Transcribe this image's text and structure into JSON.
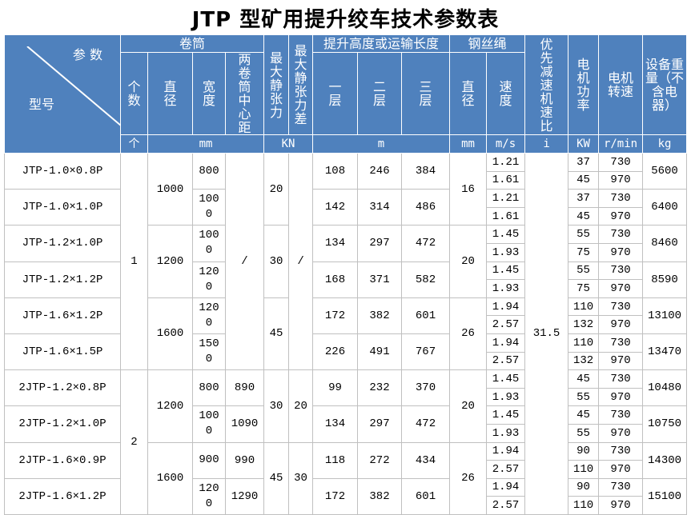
{
  "title": "JTP 型矿用提升绞车技术参数表",
  "header": {
    "param": "参 数",
    "model": "型号",
    "drum": "卷筒",
    "count": "个数",
    "diameter": "直径",
    "width": "宽度",
    "center": "两卷筒中心距",
    "max_tension": "最大静张力",
    "max_tension_diff": "最大静张力差",
    "lift": "提升高度或运输长度",
    "layer1": "一层",
    "layer2": "二层",
    "layer3": "三层",
    "rope": "钢丝绳",
    "rope_dia": "直径",
    "rope_speed": "速度",
    "ratio": "优先减速机速比",
    "motor_power": "电机功率",
    "motor_rpm": "电机转速",
    "weight": "设备重量（不含电器）"
  },
  "units": {
    "count": "个",
    "drum": "mm",
    "tension": "KN",
    "lift": "m",
    "rope_dia": "mm",
    "speed": "m/s",
    "ratio": "i",
    "power": "KW",
    "rpm": "r/min",
    "weight": "kg"
  },
  "colors": {
    "header_bg": "#4f81bd",
    "header_text": "#ffffff",
    "grid": "#c0c0c0"
  },
  "groups": {
    "count": [
      {
        "value": "1",
        "models": 6
      },
      {
        "value": "2",
        "models": 4
      }
    ],
    "diameter": [
      {
        "value": "1000",
        "models": 2
      },
      {
        "value": "1200",
        "models": 2
      },
      {
        "value": "1600",
        "models": 2
      },
      {
        "value": "1200",
        "models": 2
      },
      {
        "value": "1600",
        "models": 2
      }
    ],
    "center": [
      {
        "value": "/",
        "models": 6
      },
      {
        "value": "890",
        "models": 1
      },
      {
        "value": "1090",
        "models": 1
      },
      {
        "value": "990",
        "models": 1
      },
      {
        "value": "1290",
        "models": 1
      }
    ],
    "tension": [
      {
        "value": "20",
        "models": 2
      },
      {
        "value": "30",
        "models": 2
      },
      {
        "value": "45",
        "models": 2
      },
      {
        "value": "30",
        "models": 2
      },
      {
        "value": "45",
        "models": 2
      }
    ],
    "tension_diff": [
      {
        "value": "/",
        "models": 6
      },
      {
        "value": "20",
        "models": 2
      },
      {
        "value": "30",
        "models": 2
      }
    ],
    "rope_dia": [
      {
        "value": "16",
        "models": 2
      },
      {
        "value": "20",
        "models": 2
      },
      {
        "value": "26",
        "models": 2
      },
      {
        "value": "20",
        "models": 2
      },
      {
        "value": "26",
        "models": 2
      }
    ],
    "ratio": [
      {
        "value": "31.5",
        "models": 10
      }
    ]
  },
  "models": [
    {
      "model": "JTP-1.0×0.8P",
      "width": "800",
      "layers": [
        "108",
        "246",
        "384"
      ],
      "weight": "5600",
      "sub": [
        {
          "speed": "1.21",
          "power": "37",
          "rpm": "730"
        },
        {
          "speed": "1.61",
          "power": "45",
          "rpm": "970"
        }
      ]
    },
    {
      "model": "JTP-1.0×1.0P",
      "width": "1000",
      "layers": [
        "142",
        "314",
        "486"
      ],
      "weight": "6400",
      "sub": [
        {
          "speed": "1.21",
          "power": "37",
          "rpm": "730"
        },
        {
          "speed": "1.61",
          "power": "45",
          "rpm": "970"
        }
      ]
    },
    {
      "model": "JTP-1.2×1.0P",
      "width": "1000",
      "layers": [
        "134",
        "297",
        "472"
      ],
      "weight": "8460",
      "sub": [
        {
          "speed": "1.45",
          "power": "55",
          "rpm": "730"
        },
        {
          "speed": "1.93",
          "power": "75",
          "rpm": "970"
        }
      ]
    },
    {
      "model": "JTP-1.2×1.2P",
      "width": "1200",
      "layers": [
        "168",
        "371",
        "582"
      ],
      "weight": "8590",
      "sub": [
        {
          "speed": "1.45",
          "power": "55",
          "rpm": "730"
        },
        {
          "speed": "1.93",
          "power": "75",
          "rpm": "970"
        }
      ]
    },
    {
      "model": "JTP-1.6×1.2P",
      "width": "1200",
      "layers": [
        "172",
        "382",
        "601"
      ],
      "weight": "13100",
      "sub": [
        {
          "speed": "1.94",
          "power": "110",
          "rpm": "730"
        },
        {
          "speed": "2.57",
          "power": "132",
          "rpm": "970"
        }
      ]
    },
    {
      "model": "JTP-1.6×1.5P",
      "width": "1500",
      "layers": [
        "226",
        "491",
        "767"
      ],
      "weight": "13470",
      "sub": [
        {
          "speed": "1.94",
          "power": "110",
          "rpm": "730"
        },
        {
          "speed": "2.57",
          "power": "132",
          "rpm": "970"
        }
      ]
    },
    {
      "model": "2JTP-1.2×0.8P",
      "width": "800",
      "layers": [
        "99",
        "232",
        "370"
      ],
      "weight": "10480",
      "sub": [
        {
          "speed": "1.45",
          "power": "45",
          "rpm": "730"
        },
        {
          "speed": "1.93",
          "power": "55",
          "rpm": "970"
        }
      ]
    },
    {
      "model": "2JTP-1.2×1.0P",
      "width": "1000",
      "layers": [
        "134",
        "297",
        "472"
      ],
      "weight": "10750",
      "sub": [
        {
          "speed": "1.45",
          "power": "45",
          "rpm": "730"
        },
        {
          "speed": "1.93",
          "power": "55",
          "rpm": "970"
        }
      ]
    },
    {
      "model": "2JTP-1.6×0.9P",
      "width": "900",
      "layers": [
        "118",
        "272",
        "434"
      ],
      "weight": "14300",
      "sub": [
        {
          "speed": "1.94",
          "power": "90",
          "rpm": "730"
        },
        {
          "speed": "2.57",
          "power": "110",
          "rpm": "970"
        }
      ]
    },
    {
      "model": "2JTP-1.6×1.2P",
      "width": "1200",
      "layers": [
        "172",
        "382",
        "601"
      ],
      "weight": "15100",
      "sub": [
        {
          "speed": "1.94",
          "power": "90",
          "rpm": "730"
        },
        {
          "speed": "2.57",
          "power": "110",
          "rpm": "970"
        }
      ]
    }
  ]
}
